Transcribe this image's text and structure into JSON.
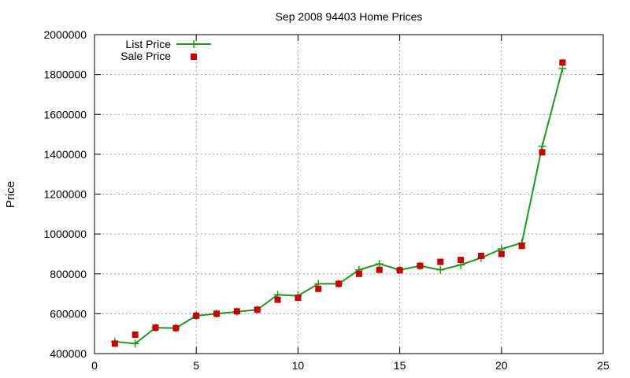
{
  "chart_data": {
    "type": "line",
    "title": "Sep 2008 94403 Home Prices",
    "xlabel": "",
    "ylabel": "Price",
    "xlim": [
      0,
      25
    ],
    "ylim": [
      400000,
      2000000
    ],
    "xticks": [
      0,
      5,
      10,
      15,
      20,
      25
    ],
    "yticks": [
      400000,
      600000,
      800000,
      1000000,
      1200000,
      1400000,
      1600000,
      1800000,
      2000000
    ],
    "grid": true,
    "legend_position": "top-left",
    "series": [
      {
        "name": "List Price",
        "style": "line+cross",
        "color": "#1a9e1a",
        "x": [
          1,
          2,
          3,
          4,
          5,
          6,
          7,
          8,
          9,
          10,
          11,
          12,
          13,
          14,
          15,
          16,
          17,
          18,
          19,
          20,
          21,
          22,
          23
        ],
        "y": [
          460000,
          450000,
          530000,
          528000,
          590000,
          600000,
          610000,
          620000,
          695000,
          690000,
          750000,
          750000,
          820000,
          850000,
          820000,
          840000,
          820000,
          845000,
          880000,
          925000,
          955000,
          1440000,
          1830000
        ]
      },
      {
        "name": "Sale Price",
        "style": "square",
        "color": "#cc0000",
        "x": [
          1,
          2,
          3,
          4,
          5,
          6,
          7,
          8,
          9,
          10,
          11,
          12,
          13,
          14,
          15,
          16,
          17,
          18,
          19,
          20,
          21,
          22,
          23
        ],
        "y": [
          450000,
          495000,
          530000,
          528000,
          590000,
          600000,
          612000,
          620000,
          670000,
          680000,
          725000,
          750000,
          800000,
          820000,
          818000,
          840000,
          860000,
          870000,
          890000,
          900000,
          940000,
          1410000,
          1860000
        ]
      }
    ]
  }
}
